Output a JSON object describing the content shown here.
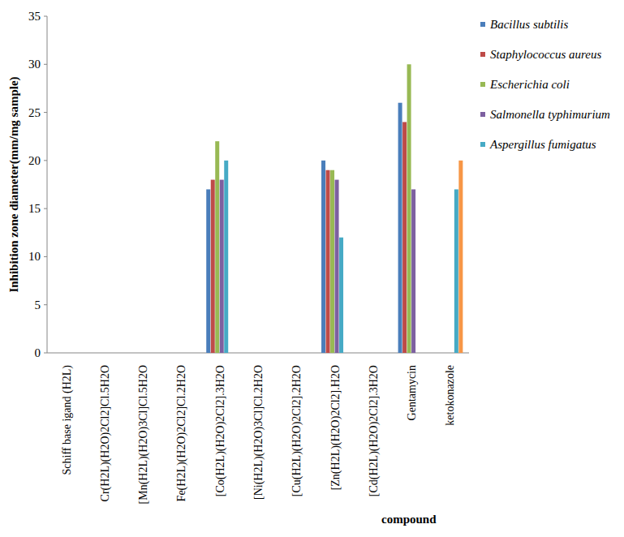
{
  "chart_data": {
    "type": "bar",
    "y_label": "Inhibition zone diameter(mm/mg sample)",
    "x_label": "compound",
    "categories": [
      "Schiff base igand (H2L)",
      "Cr(H2L)(H2O)2Cl2]Cl.5H2O",
      "[Mn(H2L)(H2O)3Cl]Cl.5H2O",
      "Fe(H2L)(H2O)2Cl2]Cl.2H2O",
      "[Co(H2L)(H2O)2Cl2].3H2O",
      "[Ni(H2L)(H2O)3Cl]Cl.2H2O",
      "[Cu(H2L)(H2O)2Cl2].2H2O",
      "[Zn(H2L)(H2O)2Cl2].H2O",
      "[Cd(H2L)(H2O)2Cl2].3H2O",
      "Gentamycin",
      "ketokonazole"
    ],
    "series": [
      {
        "name": "Bacillus subtilis",
        "color": "#4a7ebb",
        "values": [
          0,
          0,
          0,
          0,
          17,
          0,
          0,
          20,
          0,
          26,
          0
        ]
      },
      {
        "name": "Staphylococcus aureus",
        "color": "#be4b48",
        "values": [
          0,
          0,
          0,
          0,
          18,
          0,
          0,
          19,
          0,
          24,
          0
        ]
      },
      {
        "name": "Escherichia coli",
        "color": "#98b954",
        "values": [
          0,
          0,
          0,
          0,
          22,
          0,
          0,
          19,
          0,
          30,
          0
        ]
      },
      {
        "name": "Salmonella typhimurium",
        "color": "#7d60a0",
        "values": [
          0,
          0,
          0,
          0,
          18,
          0,
          0,
          18,
          0,
          17,
          0
        ]
      },
      {
        "name": "Aspergillus fumigatus",
        "color": "#46aac5",
        "values": [
          0,
          0,
          0,
          0,
          20,
          0,
          0,
          12,
          0,
          0,
          17
        ]
      },
      {
        "name": null,
        "color": "#f79646",
        "values": [
          0,
          0,
          0,
          0,
          0,
          0,
          0,
          0,
          0,
          0,
          20
        ]
      }
    ],
    "ylim": [
      0,
      35
    ],
    "yticks": [
      0,
      5,
      10,
      15,
      20,
      25,
      30,
      35
    ],
    "grid": false,
    "legend": "right"
  }
}
